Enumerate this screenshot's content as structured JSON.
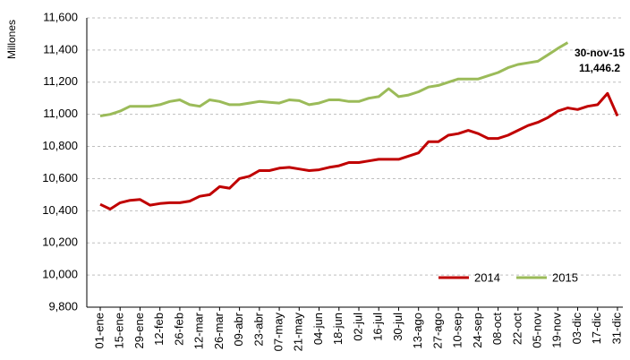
{
  "chart_data": {
    "type": "line",
    "y_label": "Millones",
    "categories": [
      "01-ene",
      null,
      "15-ene",
      null,
      "29-ene",
      null,
      "12-feb",
      null,
      "26-feb",
      null,
      "12-mar",
      null,
      "26-mar",
      null,
      "09-abr",
      null,
      "23-abr",
      null,
      "07-may",
      null,
      "21-may",
      null,
      "04-jun",
      null,
      "18-jun",
      null,
      "02-jul",
      null,
      "16-jul",
      null,
      "30-jul",
      null,
      "13-ago",
      null,
      "27-ago",
      null,
      "10-sep",
      null,
      "24-sep",
      null,
      "08-oct",
      null,
      "22-oct",
      null,
      "05-nov",
      null,
      "19-nov",
      null,
      "03-dic",
      null,
      "17-dic",
      null,
      "31-dic"
    ],
    "series": [
      {
        "name": "2014",
        "color": "#c00000",
        "values": [
          10440,
          10410,
          10450,
          10465,
          10470,
          10435,
          10445,
          10450,
          10450,
          10460,
          10490,
          10500,
          10550,
          10540,
          10600,
          10615,
          10650,
          10650,
          10665,
          10670,
          10660,
          10650,
          10655,
          10670,
          10680,
          10700,
          10700,
          10710,
          10720,
          10720,
          10720,
          10740,
          10760,
          10830,
          10830,
          10870,
          10880,
          10900,
          10880,
          10850,
          10850,
          10870,
          10900,
          10930,
          10950,
          10980,
          11020,
          11040,
          11030,
          11050,
          11060,
          11130,
          10990
        ]
      },
      {
        "name": "2015",
        "color": "#9bbb59",
        "values": [
          10990,
          11000,
          11020,
          11050,
          11050,
          11050,
          11060,
          11080,
          11090,
          11060,
          11050,
          11090,
          11080,
          11060,
          11060,
          11070,
          11080,
          11075,
          11070,
          11090,
          11085,
          11060,
          11070,
          11090,
          11090,
          11080,
          11080,
          11100,
          11110,
          11160,
          11110,
          11120,
          11140,
          11170,
          11180,
          11200,
          11220,
          11220,
          11220,
          11240,
          11260,
          11290,
          11310,
          11320,
          11330,
          11370,
          11410,
          11446.2,
          null,
          null,
          null,
          null,
          null
        ]
      }
    ],
    "annotation": {
      "text": "30-nov-15",
      "value": 11446.2,
      "label": "11,446.2"
    },
    "ylim": [
      9800,
      11600
    ],
    "yticks": [
      {
        "value": 9800,
        "label": "9,800"
      },
      {
        "value": 10000,
        "label": "10,000"
      },
      {
        "value": 10200,
        "label": "10,200"
      },
      {
        "value": 10400,
        "label": "10,400"
      },
      {
        "value": 10600,
        "label": "10,600"
      },
      {
        "value": 10800,
        "label": "10,800"
      },
      {
        "value": 11000,
        "label": "11,000"
      },
      {
        "value": 11200,
        "label": "11,200"
      },
      {
        "value": 11400,
        "label": "11,400"
      },
      {
        "value": 11600,
        "label": "11,600"
      }
    ],
    "grid": true,
    "legend": "lower right"
  }
}
